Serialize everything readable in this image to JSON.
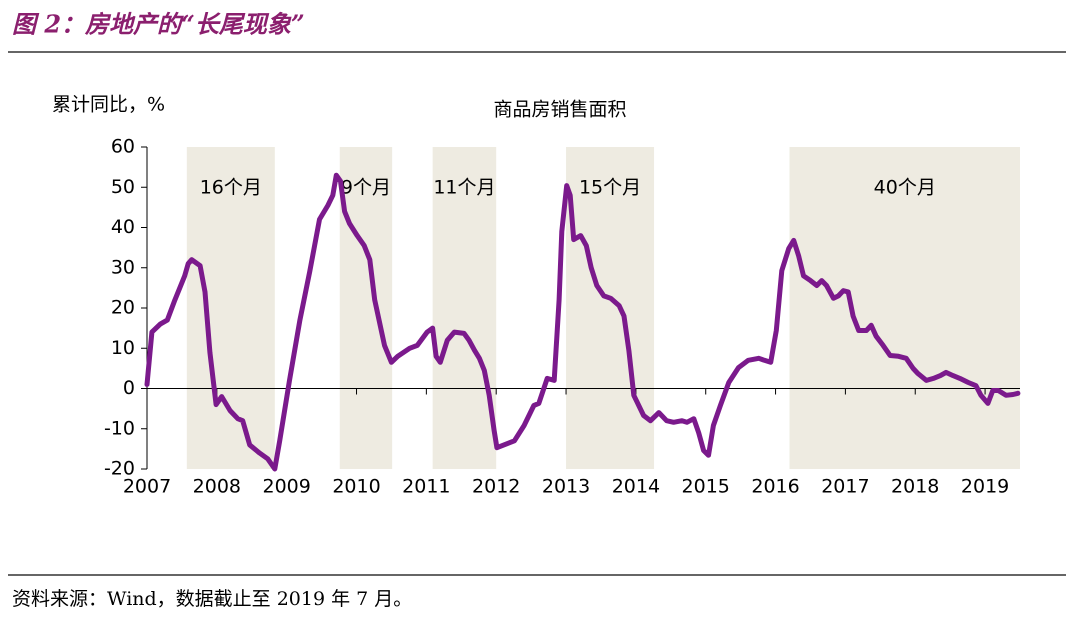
{
  "header": {
    "title": "图 2：房地产的“长尾现象”"
  },
  "chart_data": {
    "type": "line",
    "title": "商品房销售面积",
    "ylabel": "累计同比，%",
    "xlim": [
      2007,
      2019.5
    ],
    "xticks": [
      2007,
      2008,
      2009,
      2010,
      2011,
      2012,
      2013,
      2014,
      2015,
      2016,
      2017,
      2018,
      2019
    ],
    "ylim": [
      -20,
      60
    ],
    "yticks": [
      -20,
      -10,
      0,
      10,
      20,
      30,
      40,
      50,
      60
    ],
    "shaded_periods": [
      {
        "start": 2007.57,
        "end": 2008.83,
        "label": "16个月"
      },
      {
        "start": 2009.76,
        "end": 2010.51,
        "label": "9个月"
      },
      {
        "start": 2011.09,
        "end": 2012.0,
        "label": "11个月"
      },
      {
        "start": 2013.0,
        "end": 2014.26,
        "label": "15个月"
      },
      {
        "start": 2016.2,
        "end": 2019.5,
        "label": "40个月"
      }
    ],
    "shade_color": "#eeebe1",
    "series": [
      {
        "name": "商品房销售面积",
        "color": "#7b1a8c",
        "x": [
          2007,
          2007.07,
          2007.19,
          2007.29,
          2007.4,
          2007.54,
          2007.59,
          2007.64,
          2007.76,
          2007.83,
          2007.9,
          2007.99,
          2008.07,
          2008.19,
          2008.3,
          2008.37,
          2008.47,
          2008.61,
          2008.73,
          2008.83,
          2008.9,
          2009.04,
          2009.19,
          2009.33,
          2009.47,
          2009.59,
          2009.66,
          2009.71,
          2009.77,
          2009.83,
          2009.9,
          2010.01,
          2010.11,
          2010.19,
          2010.26,
          2010.4,
          2010.5,
          2010.59,
          2010.76,
          2010.87,
          2011.01,
          2011.09,
          2011.14,
          2011.2,
          2011.3,
          2011.4,
          2011.54,
          2011.61,
          2011.69,
          2011.76,
          2011.83,
          2011.9,
          2011.97,
          2012.01,
          2012.11,
          2012.26,
          2012.4,
          2012.54,
          2012.61,
          2012.73,
          2012.83,
          2012.9,
          2012.94,
          2013.01,
          2013.06,
          2013.11,
          2013.21,
          2013.29,
          2013.36,
          2013.44,
          2013.54,
          2013.64,
          2013.76,
          2013.83,
          2013.9,
          2013.97,
          2014.11,
          2014.21,
          2014.33,
          2014.44,
          2014.54,
          2014.66,
          2014.73,
          2014.83,
          2014.9,
          2014.97,
          2015.04,
          2015.11,
          2015.21,
          2015.33,
          2015.47,
          2015.61,
          2015.76,
          2015.84,
          2015.93,
          2016.01,
          2016.09,
          2016.19,
          2016.26,
          2016.33,
          2016.4,
          2016.5,
          2016.59,
          2016.66,
          2016.73,
          2016.83,
          2016.9,
          2016.97,
          2017.04,
          2017.11,
          2017.19,
          2017.3,
          2017.37,
          2017.44,
          2017.54,
          2017.64,
          2017.76,
          2017.87,
          2017.97,
          2018.04,
          2018.16,
          2018.26,
          2018.36,
          2018.44,
          2018.54,
          2018.64,
          2018.76,
          2018.87,
          2018.94,
          2019.04,
          2019.11,
          2019.19,
          2019.3,
          2019.4,
          2019.47
        ],
        "values": [
          1,
          14,
          16,
          17,
          22,
          28,
          31,
          32,
          30.5,
          24,
          9,
          -4,
          -2,
          -5.5,
          -7.5,
          -8,
          -14,
          -16,
          -17.5,
          -20,
          -13,
          2,
          17,
          29,
          42,
          45.5,
          48,
          53,
          51.5,
          44,
          41,
          38,
          35.5,
          32,
          22,
          10.7,
          6.5,
          8,
          10,
          10.7,
          14,
          15,
          8,
          6.5,
          12,
          14,
          13.7,
          12,
          9.5,
          7.5,
          4.5,
          -1.7,
          -10.4,
          -14.7,
          -14,
          -13,
          -9.2,
          -4.2,
          -3.7,
          2.5,
          2,
          22,
          39,
          50.4,
          48,
          37,
          38,
          35.5,
          30,
          25.6,
          23,
          22.4,
          20.6,
          18,
          9.4,
          -1.7,
          -6.7,
          -8,
          -6,
          -8,
          -8.4,
          -8,
          -8.4,
          -7.5,
          -11,
          -15.4,
          -16.6,
          -9.2,
          -4.2,
          1.5,
          5.2,
          7,
          7.5,
          7,
          6.5,
          14.4,
          29.3,
          34.8,
          36.8,
          33,
          28,
          26.8,
          25.6,
          26.8,
          25.6,
          22.4,
          23,
          24.3,
          24,
          18,
          14.4,
          14.4,
          15.7,
          13,
          10.7,
          8.2,
          8,
          7.5,
          5,
          3.7,
          2,
          2.5,
          3.2,
          4,
          3.2,
          2.5,
          1.5,
          0.7,
          -1.7,
          -3.7,
          -0.5,
          -0.5,
          -1.7,
          -1.5,
          -1.2
        ]
      }
    ]
  },
  "footer": {
    "source": "资料来源：Wind，数据截止至 2019 年 7 月。"
  }
}
